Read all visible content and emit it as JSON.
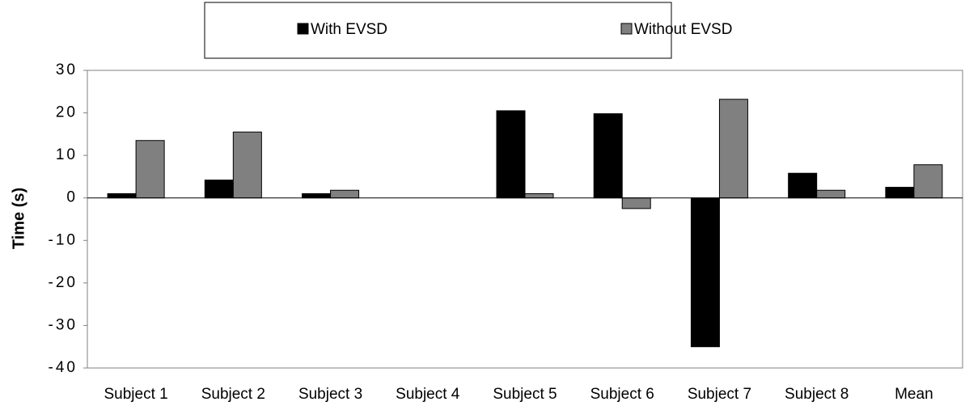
{
  "chart_data": {
    "type": "bar",
    "y_label": "Time (s)",
    "categories": [
      "Subject 1",
      "Subject 2",
      "Subject 3",
      "Subject 4",
      "Subject 5",
      "Subject 6",
      "Subject 7",
      "Subject 8",
      "Mean"
    ],
    "series": [
      {
        "name": "With EVSD",
        "color": "#000000",
        "values": [
          1,
          4.2,
          1,
          0,
          20.5,
          19.8,
          -35,
          5.8,
          2.5
        ]
      },
      {
        "name": "Without EVSD",
        "color": "#808080",
        "values": [
          13.5,
          15.5,
          1.8,
          0,
          1,
          -2.5,
          23.2,
          1.8,
          7.8
        ]
      }
    ],
    "ylim": [
      -40,
      30
    ],
    "yticks": [
      -40,
      -30,
      -20,
      -10,
      0,
      10,
      20,
      30
    ],
    "grid": false,
    "legend": "top"
  }
}
